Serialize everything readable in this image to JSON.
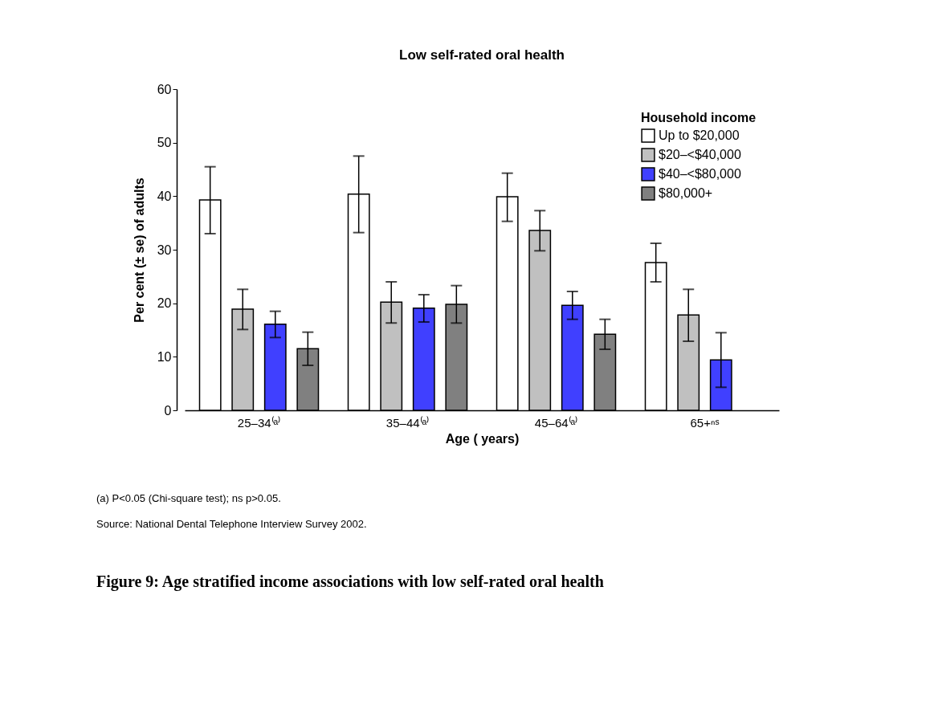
{
  "chart_data": {
    "type": "bar",
    "title": "Low self-rated oral health",
    "xlabel": "Age ( years)",
    "ylabel": "Per cent (± se) of adults",
    "legend_title": "Household income",
    "categories": [
      "25–34⁽ᵃ⁾",
      "35–44⁽ᵃ⁾",
      "45–64⁽ᵃ⁾",
      "65+ⁿˢ"
    ],
    "series": [
      {
        "name": "Up to $20,000",
        "color": "#ffffff",
        "values": [
          39.3,
          40.4,
          39.9,
          27.6
        ],
        "errors": [
          [
            33.0,
            45.5
          ],
          [
            33.2,
            47.5
          ],
          [
            35.3,
            44.3
          ],
          [
            24.0,
            31.2
          ]
        ]
      },
      {
        "name": "$20–<$40,000",
        "color": "#c0c0c0",
        "values": [
          18.9,
          20.2,
          33.6,
          17.8
        ],
        "errors": [
          [
            15.1,
            22.6
          ],
          [
            16.3,
            24.0
          ],
          [
            29.8,
            37.3
          ],
          [
            12.9,
            22.6
          ]
        ]
      },
      {
        "name": "$40–<$80,000",
        "color": "#4040ff",
        "values": [
          16.1,
          19.1,
          19.6,
          9.4
        ],
        "errors": [
          [
            13.6,
            18.5
          ],
          [
            16.5,
            21.6
          ],
          [
            17.0,
            22.2
          ],
          [
            4.3,
            14.5
          ]
        ]
      },
      {
        "name": "$80,000+",
        "color": "#808080",
        "values": [
          11.5,
          19.8,
          14.2,
          null
        ],
        "errors": [
          [
            8.4,
            14.6
          ],
          [
            16.3,
            23.3
          ],
          [
            11.4,
            17.0
          ],
          null
        ]
      }
    ],
    "ylim": [
      0,
      60
    ],
    "yticks": [
      0,
      10,
      20,
      30,
      40,
      50,
      60
    ],
    "grid": false,
    "legend": "top right",
    "annotations": [
      "(a) P<0.05 (Chi-square test); ns p>0.05.",
      "Source: National Dental Telephone Interview Survey 2002.",
      "Figure 9: Age stratified income associations with low self-rated oral health"
    ]
  }
}
